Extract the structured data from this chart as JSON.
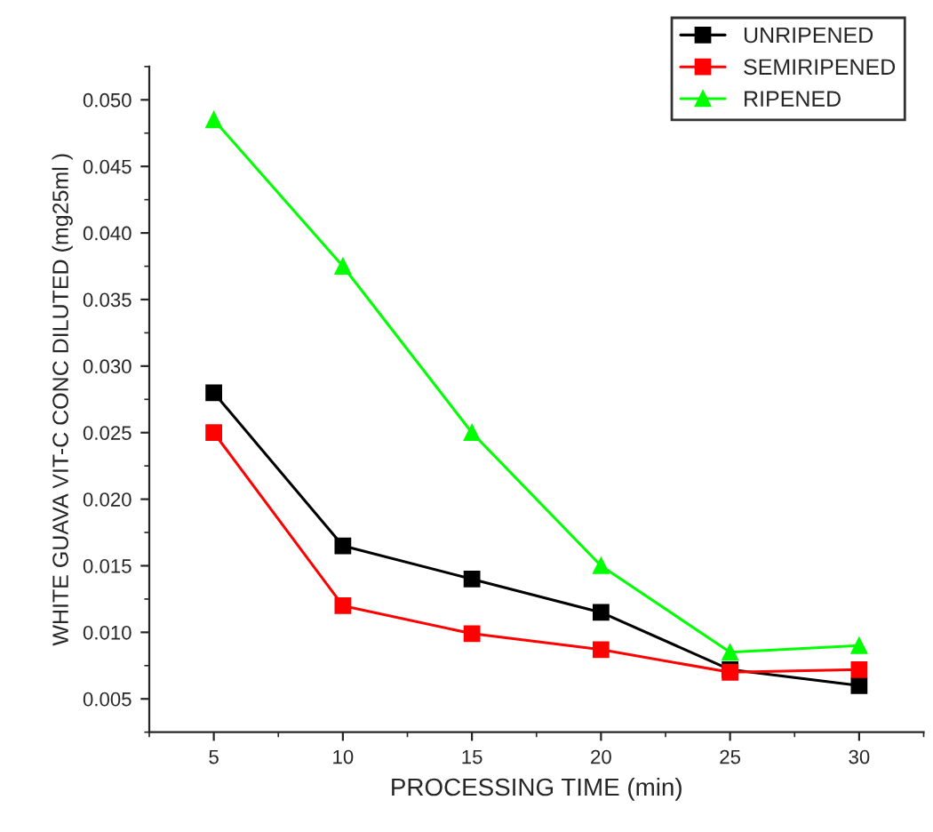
{
  "chart_data": {
    "type": "line",
    "xlabel": "PROCESSING TIME (min)",
    "ylabel": "WHITE GUAVA VIT-C CONC DILUTED (mg25ml )",
    "x": [
      5,
      10,
      15,
      20,
      25,
      30
    ],
    "series": [
      {
        "name": "UNRIPENED",
        "color": "#000000",
        "marker": "square",
        "values": [
          0.028,
          0.0165,
          0.014,
          0.0115,
          0.0072,
          0.006
        ]
      },
      {
        "name": "SEMIRIPENED",
        "color": "#ff0000",
        "marker": "square",
        "values": [
          0.025,
          0.012,
          0.0099,
          0.0087,
          0.007,
          0.0072
        ]
      },
      {
        "name": "RIPENED",
        "color": "#00ff00",
        "marker": "triangle",
        "values": [
          0.0485,
          0.0375,
          0.025,
          0.015,
          0.0085,
          0.009
        ]
      }
    ],
    "xlim": [
      2.5,
      32.5
    ],
    "xticks": [
      5,
      10,
      15,
      20,
      25,
      30
    ],
    "ylim": [
      0.0025,
      0.0525
    ],
    "yticks": [
      {
        "value": 0.005,
        "label": "0.005"
      },
      {
        "value": 0.01,
        "label": "0.010"
      },
      {
        "value": 0.015,
        "label": "0.015"
      },
      {
        "value": 0.02,
        "label": "0.020"
      },
      {
        "value": 0.025,
        "label": "0.025"
      },
      {
        "value": 0.03,
        "label": "0.030"
      },
      {
        "value": 0.035,
        "label": "0.035"
      },
      {
        "value": 0.04,
        "label": "0.040"
      },
      {
        "value": 0.045,
        "label": "0.045"
      },
      {
        "value": 0.05,
        "label": "0.050"
      }
    ],
    "grid": false,
    "legend": "top right"
  }
}
